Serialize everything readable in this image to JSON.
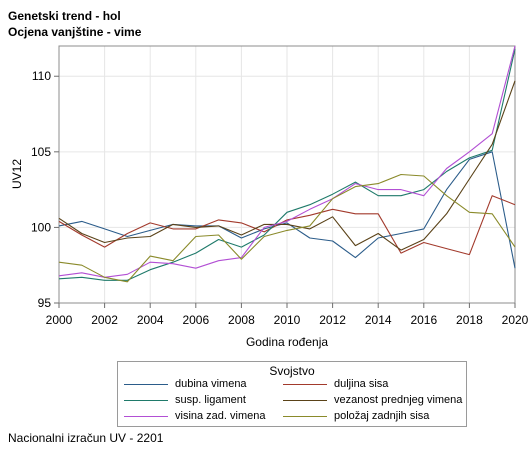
{
  "titles": {
    "line1": "Genetski trend - hol",
    "line2": "Ocjena vanjštine - vime"
  },
  "footnote": "Nacionalni izračun UV - 2201",
  "legend": {
    "title": "Svojstvo"
  },
  "chart_data": {
    "type": "line",
    "xlabel": "Godina rođenja",
    "ylabel": "UV12",
    "xlim": [
      2000,
      2020
    ],
    "ylim": [
      95,
      112
    ],
    "x_ticks": [
      2000,
      2002,
      2004,
      2006,
      2008,
      2010,
      2012,
      2014,
      2016,
      2018,
      2020
    ],
    "y_ticks": [
      95,
      100,
      105,
      110
    ],
    "grid": true,
    "legend_position": "bottom",
    "x": [
      2000,
      2001,
      2002,
      2003,
      2004,
      2005,
      2006,
      2007,
      2008,
      2009,
      2010,
      2011,
      2012,
      2013,
      2014,
      2015,
      2016,
      2017,
      2018,
      2019,
      2020
    ],
    "series": [
      {
        "name": "dubina vimena",
        "color": "#2b5c8a",
        "values": [
          100.1,
          100.4,
          99.9,
          99.4,
          99.8,
          100.2,
          100.1,
          100.1,
          99.3,
          99.9,
          100.3,
          99.3,
          99.1,
          98.0,
          99.3,
          99.6,
          99.9,
          102.5,
          104.5,
          105.0,
          97.3
        ]
      },
      {
        "name": "duljina sisa",
        "color": "#a23a2c",
        "values": [
          100.4,
          99.5,
          98.7,
          99.6,
          100.3,
          99.9,
          99.9,
          100.5,
          100.3,
          99.7,
          100.5,
          100.8,
          101.2,
          100.9,
          100.9,
          98.3,
          99.0,
          98.6,
          98.2,
          102.1,
          101.5
        ]
      },
      {
        "name": "susp. ligament",
        "color": "#1f7a6a",
        "values": [
          96.6,
          96.7,
          96.5,
          96.5,
          97.2,
          97.7,
          98.3,
          99.2,
          98.7,
          99.5,
          101.0,
          101.5,
          102.2,
          103.0,
          102.1,
          102.1,
          102.5,
          103.7,
          104.6,
          105.1,
          111.8
        ]
      },
      {
        "name": "vezanost prednjeg vimena",
        "color": "#5a4218",
        "values": [
          100.6,
          99.6,
          99.0,
          99.3,
          99.4,
          100.2,
          100.0,
          100.1,
          99.5,
          100.2,
          100.2,
          99.9,
          100.7,
          98.8,
          99.6,
          98.5,
          99.2,
          100.9,
          103.2,
          105.5,
          109.7
        ]
      },
      {
        "name": "visina zad. vimena",
        "color": "#b24fd4",
        "values": [
          96.8,
          97.0,
          96.7,
          96.9,
          97.7,
          97.6,
          97.3,
          97.8,
          98.0,
          100.0,
          100.4,
          101.2,
          101.9,
          102.9,
          102.5,
          102.5,
          102.1,
          103.9,
          105.0,
          106.2,
          112.0
        ]
      },
      {
        "name": "položaj zadnjih sisa",
        "color": "#8a8a2a",
        "values": [
          97.7,
          97.5,
          96.7,
          96.4,
          98.1,
          97.8,
          99.4,
          99.5,
          97.9,
          99.4,
          99.8,
          100.1,
          101.9,
          102.7,
          102.9,
          103.5,
          103.4,
          102.1,
          101.0,
          100.9,
          98.7
        ]
      }
    ]
  }
}
